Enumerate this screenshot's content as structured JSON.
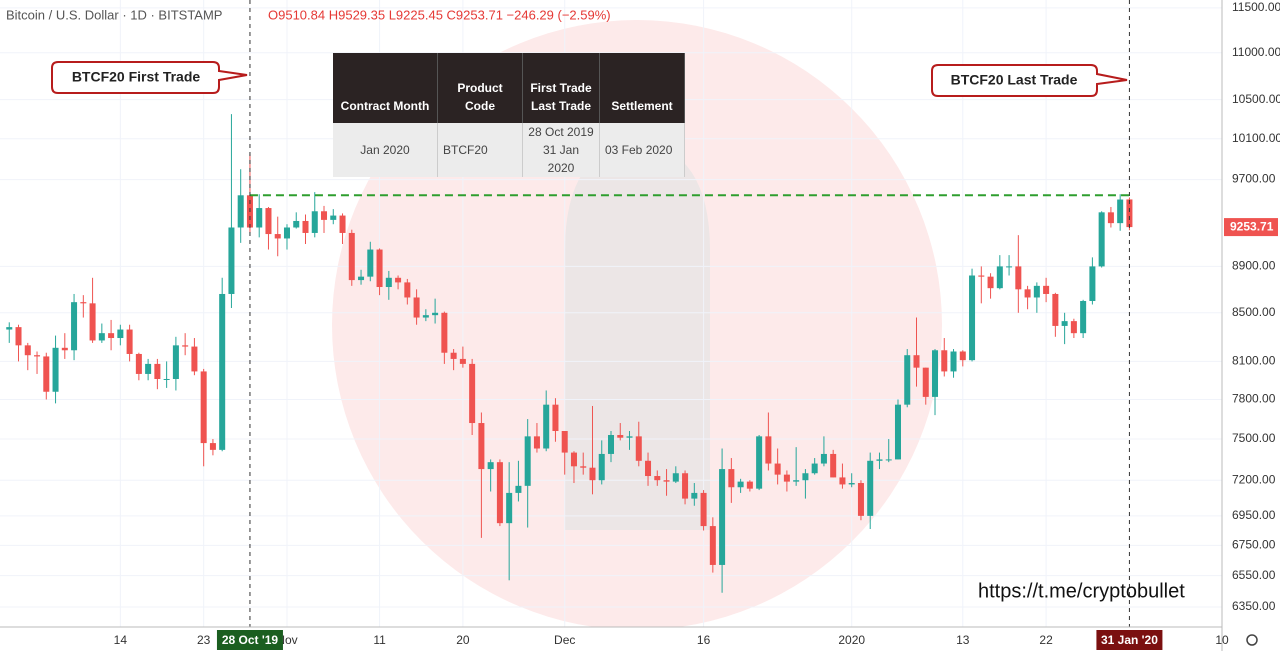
{
  "chart_data": {
    "type": "candlestick",
    "title": "Bitcoin / U.S. Dollar · 1D · BITSTAMP",
    "subtitle": "O9510.84 H9529.35 L9225.45 C9253.71 −246.29 (−2.59%)",
    "x": [
      "2019-10-02",
      "2019-10-03",
      "2019-10-04",
      "2019-10-05",
      "2019-10-06",
      "2019-10-07",
      "2019-10-08",
      "2019-10-09",
      "2019-10-10",
      "2019-10-11",
      "2019-10-12",
      "2019-10-13",
      "2019-10-14",
      "2019-10-15",
      "2019-10-16",
      "2019-10-17",
      "2019-10-18",
      "2019-10-19",
      "2019-10-20",
      "2019-10-21",
      "2019-10-22",
      "2019-10-23",
      "2019-10-24",
      "2019-10-25",
      "2019-10-26",
      "2019-10-27",
      "2019-10-28",
      "2019-10-29",
      "2019-10-30",
      "2019-10-31",
      "2019-11-01",
      "2019-11-02",
      "2019-11-03",
      "2019-11-04",
      "2019-11-05",
      "2019-11-06",
      "2019-11-07",
      "2019-11-08",
      "2019-11-09",
      "2019-11-10",
      "2019-11-11",
      "2019-11-12",
      "2019-11-13",
      "2019-11-14",
      "2019-11-15",
      "2019-11-16",
      "2019-11-17",
      "2019-11-18",
      "2019-11-19",
      "2019-11-20",
      "2019-11-21",
      "2019-11-22",
      "2019-11-23",
      "2019-11-24",
      "2019-11-25",
      "2019-11-26",
      "2019-11-27",
      "2019-11-28",
      "2019-11-29",
      "2019-11-30",
      "2019-12-01",
      "2019-12-02",
      "2019-12-03",
      "2019-12-04",
      "2019-12-05",
      "2019-12-06",
      "2019-12-07",
      "2019-12-08",
      "2019-12-09",
      "2019-12-10",
      "2019-12-11",
      "2019-12-12",
      "2019-12-13",
      "2019-12-14",
      "2019-12-15",
      "2019-12-16",
      "2019-12-17",
      "2019-12-18",
      "2019-12-19",
      "2019-12-20",
      "2019-12-21",
      "2019-12-22",
      "2019-12-23",
      "2019-12-24",
      "2019-12-25",
      "2019-12-26",
      "2019-12-27",
      "2019-12-28",
      "2019-12-29",
      "2019-12-30",
      "2019-12-31",
      "2020-01-01",
      "2020-01-02",
      "2020-01-03",
      "2020-01-04",
      "2020-01-05",
      "2020-01-06",
      "2020-01-07",
      "2020-01-08",
      "2020-01-09",
      "2020-01-10",
      "2020-01-11",
      "2020-01-12",
      "2020-01-13",
      "2020-01-14",
      "2020-01-15",
      "2020-01-16",
      "2020-01-17",
      "2020-01-18",
      "2020-01-19",
      "2020-01-20",
      "2020-01-21",
      "2020-01-22",
      "2020-01-23",
      "2020-01-24",
      "2020-01-25",
      "2020-01-26",
      "2020-01-27",
      "2020-01-28",
      "2020-01-29",
      "2020-01-30",
      "2020-01-31"
    ],
    "open": [
      8360,
      8380,
      8230,
      8150,
      8140,
      7860,
      8210,
      8190,
      8590,
      8580,
      8270,
      8330,
      8290,
      8360,
      8160,
      8000,
      8080,
      7960,
      7960,
      8230,
      8220,
      8020,
      7470,
      7420,
      8660,
      9250,
      9550,
      9250,
      9430,
      9190,
      9150,
      9250,
      9310,
      9200,
      9400,
      9320,
      9360,
      9200,
      8780,
      8810,
      9050,
      8720,
      8800,
      8760,
      8630,
      8460,
      8480,
      8500,
      8170,
      8120,
      8080,
      7620,
      7280,
      7330,
      6900,
      7110,
      7160,
      7520,
      7430,
      7760,
      7560,
      7400,
      7300,
      7290,
      7200,
      7390,
      7530,
      7510,
      7520,
      7340,
      7230,
      7200,
      7190,
      7250,
      7070,
      7110,
      6880,
      6620,
      7280,
      7150,
      7190,
      7140,
      7520,
      7320,
      7240,
      7190,
      7200,
      7250,
      7320,
      7390,
      7220,
      7170,
      7180,
      6950,
      7340,
      7350,
      7350,
      7760,
      8150,
      8050,
      7820,
      8190,
      8020,
      8180,
      8110,
      8820,
      8810,
      8710,
      8900,
      8900,
      8700,
      8630,
      8730,
      8660,
      8390,
      8430,
      8330,
      8600,
      8900,
      9390,
      9290,
      9510.84
    ],
    "high": [
      8420,
      8400,
      8250,
      8180,
      8170,
      8310,
      8330,
      8660,
      8650,
      8800,
      8410,
      8440,
      8400,
      8400,
      8170,
      8120,
      8120,
      8100,
      8300,
      8330,
      8290,
      8040,
      7500,
      8800,
      10350,
      9800,
      9950,
      9560,
      9440,
      9350,
      9280,
      9390,
      9370,
      9580,
      9450,
      9420,
      9380,
      9230,
      8870,
      9120,
      9060,
      8860,
      8820,
      8790,
      8700,
      8530,
      8620,
      8510,
      8200,
      8220,
      8120,
      7700,
      7350,
      7350,
      7330,
      7340,
      7650,
      7620,
      7870,
      7810,
      7560,
      7410,
      7400,
      7750,
      7490,
      7560,
      7620,
      7560,
      7630,
      7400,
      7270,
      7280,
      7300,
      7270,
      7180,
      7130,
      6940,
      7430,
      7360,
      7210,
      7200,
      7530,
      7700,
      7430,
      7270,
      7440,
      7280,
      7360,
      7520,
      7420,
      7320,
      7250,
      7200,
      7400,
      7400,
      7500,
      7800,
      8200,
      8460,
      8050,
      8200,
      8290,
      8200,
      8190,
      8880,
      8900,
      8840,
      9000,
      9000,
      9180,
      8730,
      8760,
      8800,
      8670,
      8500,
      8450,
      8610,
      8980,
      9400,
      9440,
      9560,
      9529.35
    ],
    "low": [
      8250,
      8100,
      8030,
      8000,
      7800,
      7770,
      8120,
      8110,
      8460,
      8250,
      8250,
      8190,
      8230,
      8100,
      7950,
      7950,
      7880,
      7890,
      7870,
      8150,
      7990,
      7300,
      7380,
      7410,
      8540,
      9110,
      9200,
      9160,
      9050,
      8990,
      9050,
      9240,
      9100,
      9160,
      9200,
      9280,
      9100,
      8730,
      8740,
      8770,
      8650,
      8610,
      8700,
      8570,
      8400,
      8430,
      8410,
      8080,
      8030,
      8050,
      7530,
      6800,
      7120,
      6880,
      6520,
      7050,
      6870,
      7400,
      7410,
      7480,
      7240,
      7180,
      7240,
      7100,
      7170,
      7330,
      7490,
      7420,
      7300,
      7160,
      7160,
      7090,
      7180,
      7030,
      7020,
      6850,
      6570,
      6440,
      7040,
      7110,
      7120,
      7130,
      7270,
      7170,
      7120,
      7160,
      7070,
      7240,
      7300,
      7220,
      7140,
      7150,
      6920,
      6860,
      7280,
      7330,
      7350,
      7740,
      7900,
      7760,
      7680,
      7980,
      7970,
      8060,
      8100,
      8580,
      8620,
      8700,
      8820,
      8500,
      8530,
      8500,
      8590,
      8300,
      8240,
      8290,
      8290,
      8570,
      8890,
      9250,
      9220,
      9225.45
    ],
    "close": [
      8380,
      8230,
      8150,
      8140,
      7860,
      8210,
      8190,
      8590,
      8580,
      8270,
      8330,
      8290,
      8360,
      8160,
      8000,
      8080,
      7960,
      7960,
      8230,
      8220,
      8020,
      7470,
      7420,
      8660,
      9250,
      9550,
      9250,
      9430,
      9190,
      9150,
      9250,
      9310,
      9200,
      9400,
      9320,
      9360,
      9200,
      8780,
      8810,
      9050,
      8720,
      8800,
      8760,
      8630,
      8460,
      8480,
      8500,
      8170,
      8120,
      8080,
      7620,
      7280,
      7330,
      6900,
      7110,
      7160,
      7520,
      7430,
      7760,
      7560,
      7400,
      7300,
      7290,
      7200,
      7390,
      7530,
      7510,
      7520,
      7340,
      7230,
      7200,
      7190,
      7250,
      7070,
      7110,
      6880,
      6620,
      7280,
      7150,
      7190,
      7140,
      7520,
      7320,
      7240,
      7190,
      7200,
      7250,
      7320,
      7390,
      7220,
      7170,
      7180,
      6950,
      7340,
      7350,
      7350,
      7760,
      8150,
      8050,
      7820,
      8190,
      8020,
      8180,
      8110,
      8820,
      8810,
      8710,
      8900,
      8900,
      8700,
      8630,
      8730,
      8660,
      8390,
      8430,
      8330,
      8600,
      8900,
      9390,
      9290,
      9510,
      9253.71
    ],
    "up_color": "#26a69a",
    "down_color": "#ef5350",
    "log_scale": true,
    "grid": true,
    "ylim": [
      6225,
      11590
    ],
    "yticks": [
      {
        "value": 6350,
        "label": "6350.00"
      },
      {
        "value": 6550,
        "label": "6550.00"
      },
      {
        "value": 6750,
        "label": "6750.00"
      },
      {
        "value": 6950,
        "label": "6950.00"
      },
      {
        "value": 7200,
        "label": "7200.00"
      },
      {
        "value": 7500,
        "label": "7500.00"
      },
      {
        "value": 7800,
        "label": "7800.00"
      },
      {
        "value": 8100,
        "label": "8100.00"
      },
      {
        "value": 8500,
        "label": "8500.00"
      },
      {
        "value": 8900,
        "label": "8900.00"
      },
      {
        "value": 9700,
        "label": "9700.00"
      },
      {
        "value": 10100,
        "label": "10100.00"
      },
      {
        "value": 10500,
        "label": "10500.00"
      },
      {
        "value": 11000,
        "label": "11000.00"
      },
      {
        "value": 11500,
        "label": "11500.00"
      }
    ],
    "xlim": [
      "2019-10-01",
      "2020-02-10"
    ],
    "xticks": [
      {
        "value": "2019-10-14",
        "label": "14"
      },
      {
        "value": "2019-10-23",
        "label": "23"
      },
      {
        "value": "2019-11-01",
        "label": "Nov"
      },
      {
        "value": "2019-11-11",
        "label": "11"
      },
      {
        "value": "2019-11-20",
        "label": "20"
      },
      {
        "value": "2019-12-01",
        "label": "Dec"
      },
      {
        "value": "2019-12-16",
        "label": "16"
      },
      {
        "value": "2020-01-01",
        "label": "2020"
      },
      {
        "value": "2020-01-13",
        "label": "13"
      },
      {
        "value": "2020-01-22",
        "label": "22"
      },
      {
        "value": "2020-02-10",
        "label": "10"
      }
    ],
    "markers": [
      {
        "x": "2019-10-28",
        "label": "28 Oct '19",
        "color": "#1b5e20"
      },
      {
        "x": "2020-01-31",
        "label": "31 Jan '20",
        "color": "#7b1010"
      }
    ],
    "reference_line": {
      "value": 9550,
      "color": "#2e9e2e"
    },
    "annotations": [
      "BTCF20 First Trade",
      "BTCF20 Last Trade"
    ],
    "watermark": "https://t.me/cryptobullet"
  },
  "table": {
    "columns": [
      "Contract Month",
      "Product Code",
      [
        "First Trade",
        "Last Trade"
      ],
      "Settlement"
    ],
    "rows": [
      [
        "Jan 2020",
        "BTCF20",
        [
          "28 Oct 2019",
          "31 Jan 2020"
        ],
        "03 Feb 2020"
      ]
    ]
  }
}
